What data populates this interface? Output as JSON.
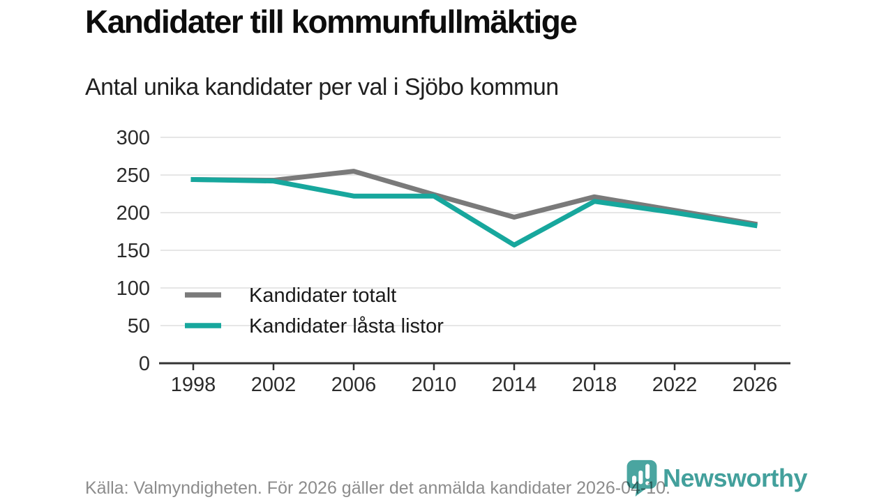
{
  "header": {
    "title": "Kandidater till kommunfullmäktige",
    "subtitle": "Antal unika kandidater per val i Sjöbo kommun"
  },
  "chart_data": {
    "type": "line",
    "x": [
      1998,
      2002,
      2006,
      2010,
      2014,
      2018,
      2022,
      2026
    ],
    "series": [
      {
        "name": "Kandidater totalt",
        "color": "#7a7a7a",
        "values": [
          244,
          243,
          255,
          224,
          194,
          221,
          203,
          185
        ]
      },
      {
        "name": "Kandidater låsta listor",
        "color": "#17a79d",
        "values": [
          244,
          242,
          222,
          222,
          157,
          215,
          200,
          183
        ]
      }
    ],
    "title": "Kandidater till kommunfullmäktige",
    "subtitle": "Antal unika kandidater per val i Sjöbo kommun",
    "xlabel": "",
    "ylabel": "",
    "ylim": [
      0,
      300
    ],
    "yticks": [
      0,
      50,
      100,
      150,
      200,
      250,
      300
    ],
    "grid": "horizontal-only",
    "legend_position": "inside-bottom-left",
    "line_width": 7
  },
  "colors": {
    "grid": "#dedede",
    "axis": "#333333",
    "tick_label": "#2b2b2b",
    "legend_text": "#1a1a1a",
    "footer_text": "#8c8c8c",
    "brand_teal": "#43a09c"
  },
  "footer": {
    "source": "Källa: Valmyndigheten. För 2026 gäller det anmälda kandidater 2026-04-10.",
    "brand": "Newsworthy"
  }
}
